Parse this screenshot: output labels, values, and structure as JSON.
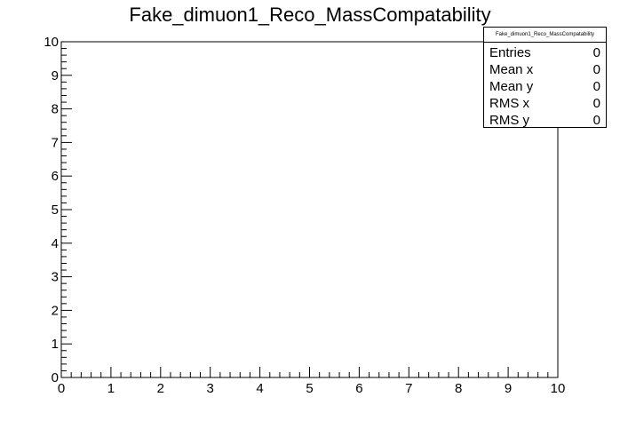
{
  "chart_data": {
    "type": "scatter",
    "title": "Fake_dimuon1_Reco_MassCompatability",
    "xlabel": "",
    "ylabel": "",
    "xlim": [
      0,
      10
    ],
    "ylim": [
      0,
      10
    ],
    "x_ticks": [
      "0",
      "1",
      "2",
      "3",
      "4",
      "5",
      "6",
      "7",
      "8",
      "9",
      "10"
    ],
    "y_ticks": [
      "0",
      "1",
      "2",
      "3",
      "4",
      "5",
      "6",
      "7",
      "8",
      "9",
      "10"
    ],
    "x": [],
    "y": [],
    "grid": false,
    "legend": "none"
  },
  "stats": {
    "title": "Fake_dimuon1_Reco_MassCompatability",
    "rows": [
      {
        "label": "Entries",
        "value": "0"
      },
      {
        "label": "Mean x",
        "value": "0"
      },
      {
        "label": "Mean y",
        "value": "0"
      },
      {
        "label": "RMS x",
        "value": "0"
      },
      {
        "label": "RMS y",
        "value": "0"
      }
    ]
  }
}
